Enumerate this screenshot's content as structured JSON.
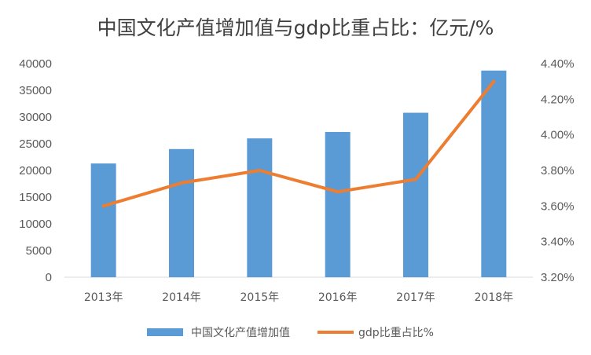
{
  "chart_data": {
    "type": "bar+line",
    "title": "中国文化产值增加值与gdp比重占比：亿元/%",
    "categories": [
      "2013年",
      "2014年",
      "2015年",
      "2016年",
      "2017年",
      "2018年"
    ],
    "series": [
      {
        "name": "中国文化产值增加值",
        "type": "bar",
        "axis": "left",
        "color": "#5B9BD5",
        "values": [
          21300,
          24000,
          26000,
          27200,
          30800,
          38700
        ]
      },
      {
        "name": "gdp比重占比%",
        "type": "line",
        "axis": "right",
        "color": "#ED7D31",
        "values": [
          3.6,
          3.73,
          3.8,
          3.68,
          3.75,
          4.3
        ]
      }
    ],
    "left_axis": {
      "min": 0,
      "max": 40000,
      "step": 5000,
      "ticks": [
        "0",
        "5000",
        "10000",
        "15000",
        "20000",
        "25000",
        "30000",
        "35000",
        "40000"
      ]
    },
    "right_axis": {
      "min": 3.2,
      "max": 4.4,
      "step": 0.2,
      "ticks": [
        "3.20%",
        "3.40%",
        "3.60%",
        "3.80%",
        "4.00%",
        "4.20%",
        "4.40%"
      ]
    },
    "grid": false,
    "legend_position": "bottom"
  }
}
